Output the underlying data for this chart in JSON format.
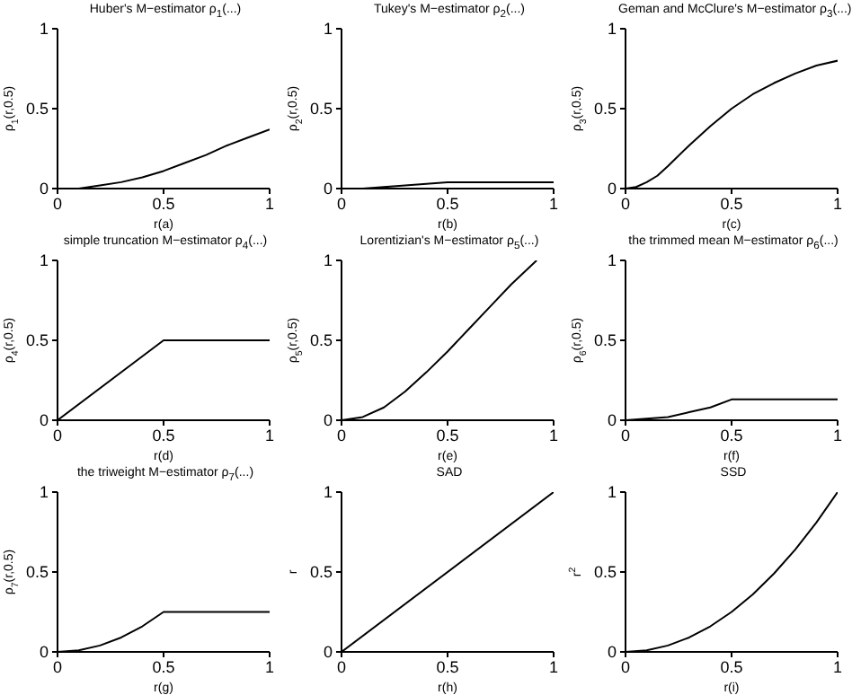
{
  "chart_data": [
    {
      "type": "line",
      "title": "Huber's M−estimator ρ$_{1}$(...)",
      "xlabel": "r(a)",
      "ylabel": "ρ$_{1}$(r,0.5)",
      "x": [
        0,
        0.1,
        0.2,
        0.3,
        0.4,
        0.5,
        0.6,
        0.7,
        0.8,
        0.9,
        1
      ],
      "values": [
        0,
        0,
        0.02,
        0.04,
        0.07,
        0.11,
        0.16,
        0.21,
        0.27,
        0.32,
        0.37
      ],
      "color": "#000000",
      "xlim": [
        0,
        1
      ],
      "ylim": [
        0,
        1
      ],
      "xticks": [
        0,
        0.5,
        1
      ],
      "yticks": [
        0,
        0.5,
        1
      ]
    },
    {
      "type": "line",
      "title": "Tukey's M−estimator ρ$_{2}$(...)",
      "xlabel": "r(b)",
      "ylabel": "ρ$_{2}$(r,0.5)",
      "x": [
        0,
        0.1,
        0.2,
        0.3,
        0.4,
        0.5,
        0.6,
        0.7,
        0.8,
        0.9,
        1
      ],
      "values": [
        0,
        0,
        0.01,
        0.02,
        0.03,
        0.04,
        0.04,
        0.04,
        0.04,
        0.04,
        0.04
      ],
      "color": "#000000",
      "xlim": [
        0,
        1
      ],
      "ylim": [
        0,
        1
      ],
      "xticks": [
        0,
        0.5,
        1
      ],
      "yticks": [
        0,
        0.5,
        1
      ]
    },
    {
      "type": "line",
      "title": "Geman and McClure's M−estimator ρ$_{3}$(...)",
      "xlabel": "r(c)",
      "ylabel": "ρ$_{3}$(r,0.5)",
      "x": [
        0,
        0.05,
        0.1,
        0.15,
        0.2,
        0.3,
        0.4,
        0.5,
        0.6,
        0.7,
        0.8,
        0.9,
        1
      ],
      "values": [
        0,
        0.01,
        0.04,
        0.08,
        0.14,
        0.27,
        0.39,
        0.5,
        0.59,
        0.66,
        0.72,
        0.77,
        0.8
      ],
      "color": "#000000",
      "xlim": [
        0,
        1
      ],
      "ylim": [
        0,
        1
      ],
      "xticks": [
        0,
        0.5,
        1
      ],
      "yticks": [
        0,
        0.5,
        1
      ]
    },
    {
      "type": "line",
      "title": "simple truncation M−estimator ρ$_{4}$(...)",
      "xlabel": "r(d)",
      "ylabel": "ρ$_{4}$(r,0.5)",
      "x": [
        0,
        0.5,
        1
      ],
      "values": [
        0,
        0.5,
        0.5
      ],
      "color": "#000000",
      "xlim": [
        0,
        1
      ],
      "ylim": [
        0,
        1
      ],
      "xticks": [
        0,
        0.5,
        1
      ],
      "yticks": [
        0,
        0.5,
        1
      ]
    },
    {
      "type": "line",
      "title": "Lorentizian's M−estimator ρ$_{5}$(...)",
      "xlabel": "r(e)",
      "ylabel": "ρ$_{5}$(r,0.5)",
      "x": [
        0,
        0.1,
        0.2,
        0.3,
        0.4,
        0.5,
        0.6,
        0.7,
        0.8,
        0.92
      ],
      "values": [
        0,
        0.02,
        0.08,
        0.18,
        0.3,
        0.43,
        0.57,
        0.71,
        0.85,
        1
      ],
      "color": "#000000",
      "xlim": [
        0,
        1
      ],
      "ylim": [
        0,
        1
      ],
      "xticks": [
        0,
        0.5,
        1
      ],
      "yticks": [
        0,
        0.5,
        1
      ]
    },
    {
      "type": "line",
      "title": "the trimmed mean M−estimator ρ$_{6}$(...)",
      "xlabel": "r(f)",
      "ylabel": "ρ$_{6}$(r,0.5)",
      "x": [
        0,
        0.1,
        0.2,
        0.3,
        0.4,
        0.5,
        1
      ],
      "values": [
        0,
        0.01,
        0.02,
        0.05,
        0.08,
        0.13,
        0.13
      ],
      "color": "#000000",
      "xlim": [
        0,
        1
      ],
      "ylim": [
        0,
        1
      ],
      "xticks": [
        0,
        0.5,
        1
      ],
      "yticks": [
        0,
        0.5,
        1
      ]
    },
    {
      "type": "line",
      "title": "the triweight M−estimator ρ$_{7}$(...)",
      "xlabel": "r(g)",
      "ylabel": "ρ$_{7}$(r,0.5)",
      "x": [
        0,
        0.1,
        0.2,
        0.3,
        0.4,
        0.5,
        1
      ],
      "values": [
        0,
        0.01,
        0.04,
        0.09,
        0.16,
        0.25,
        0.25
      ],
      "color": "#000000",
      "xlim": [
        0,
        1
      ],
      "ylim": [
        0,
        1
      ],
      "xticks": [
        0,
        0.5,
        1
      ],
      "yticks": [
        0,
        0.5,
        1
      ]
    },
    {
      "type": "line",
      "title": "SAD",
      "xlabel": "r(h)",
      "ylabel": "r",
      "x": [
        0,
        1
      ],
      "values": [
        0,
        1
      ],
      "color": "#000000",
      "xlim": [
        0,
        1
      ],
      "ylim": [
        0,
        1
      ],
      "xticks": [
        0,
        0.5,
        1
      ],
      "yticks": [
        0,
        0.5,
        1
      ]
    },
    {
      "type": "line",
      "title": "SSD",
      "xlabel": "r(i)",
      "ylabel": "r$^{2}$",
      "x": [
        0,
        0.1,
        0.2,
        0.3,
        0.4,
        0.5,
        0.6,
        0.7,
        0.8,
        0.9,
        1
      ],
      "values": [
        0,
        0.01,
        0.04,
        0.09,
        0.16,
        0.25,
        0.36,
        0.49,
        0.64,
        0.81,
        1
      ],
      "color": "#000000",
      "xlim": [
        0,
        1
      ],
      "ylim": [
        0,
        1
      ],
      "xticks": [
        0,
        0.5,
        1
      ],
      "yticks": [
        0,
        0.5,
        1
      ]
    }
  ]
}
